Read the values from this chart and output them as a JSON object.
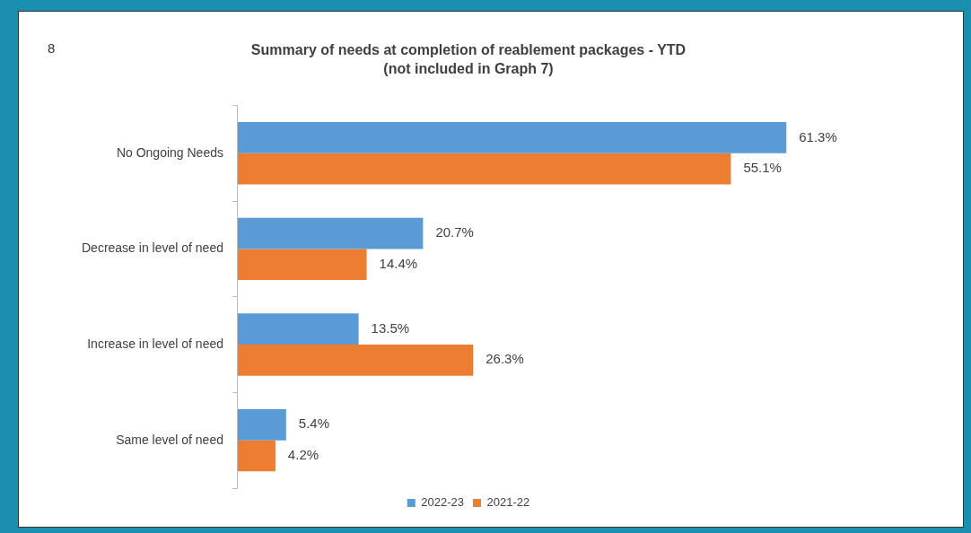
{
  "chart_data": {
    "type": "bar",
    "orientation": "horizontal",
    "tick_labels": "y",
    "title": "Summary of needs at completion of reablement packages - YTD",
    "subtitle": "(not included in Graph 7)",
    "annotations": [
      "8"
    ],
    "categories": [
      "No Ongoing Needs",
      "Decrease in level of need",
      "Increase in level of need",
      "Same level of need"
    ],
    "series": [
      {
        "name": "2022-23",
        "color": "#5b9bd5",
        "values": [
          61.3,
          20.7,
          13.5,
          5.4
        ],
        "value_labels": [
          "61.3%",
          "20.7%",
          "13.5%",
          "5.4%"
        ]
      },
      {
        "name": "2021-22",
        "color": "#ed7d31",
        "values": [
          55.1,
          14.4,
          26.3,
          4.2
        ],
        "value_labels": [
          "55.1%",
          "14.4%",
          "26.3%",
          "4.2%"
        ]
      }
    ],
    "legend": "bottom",
    "grid": false
  }
}
